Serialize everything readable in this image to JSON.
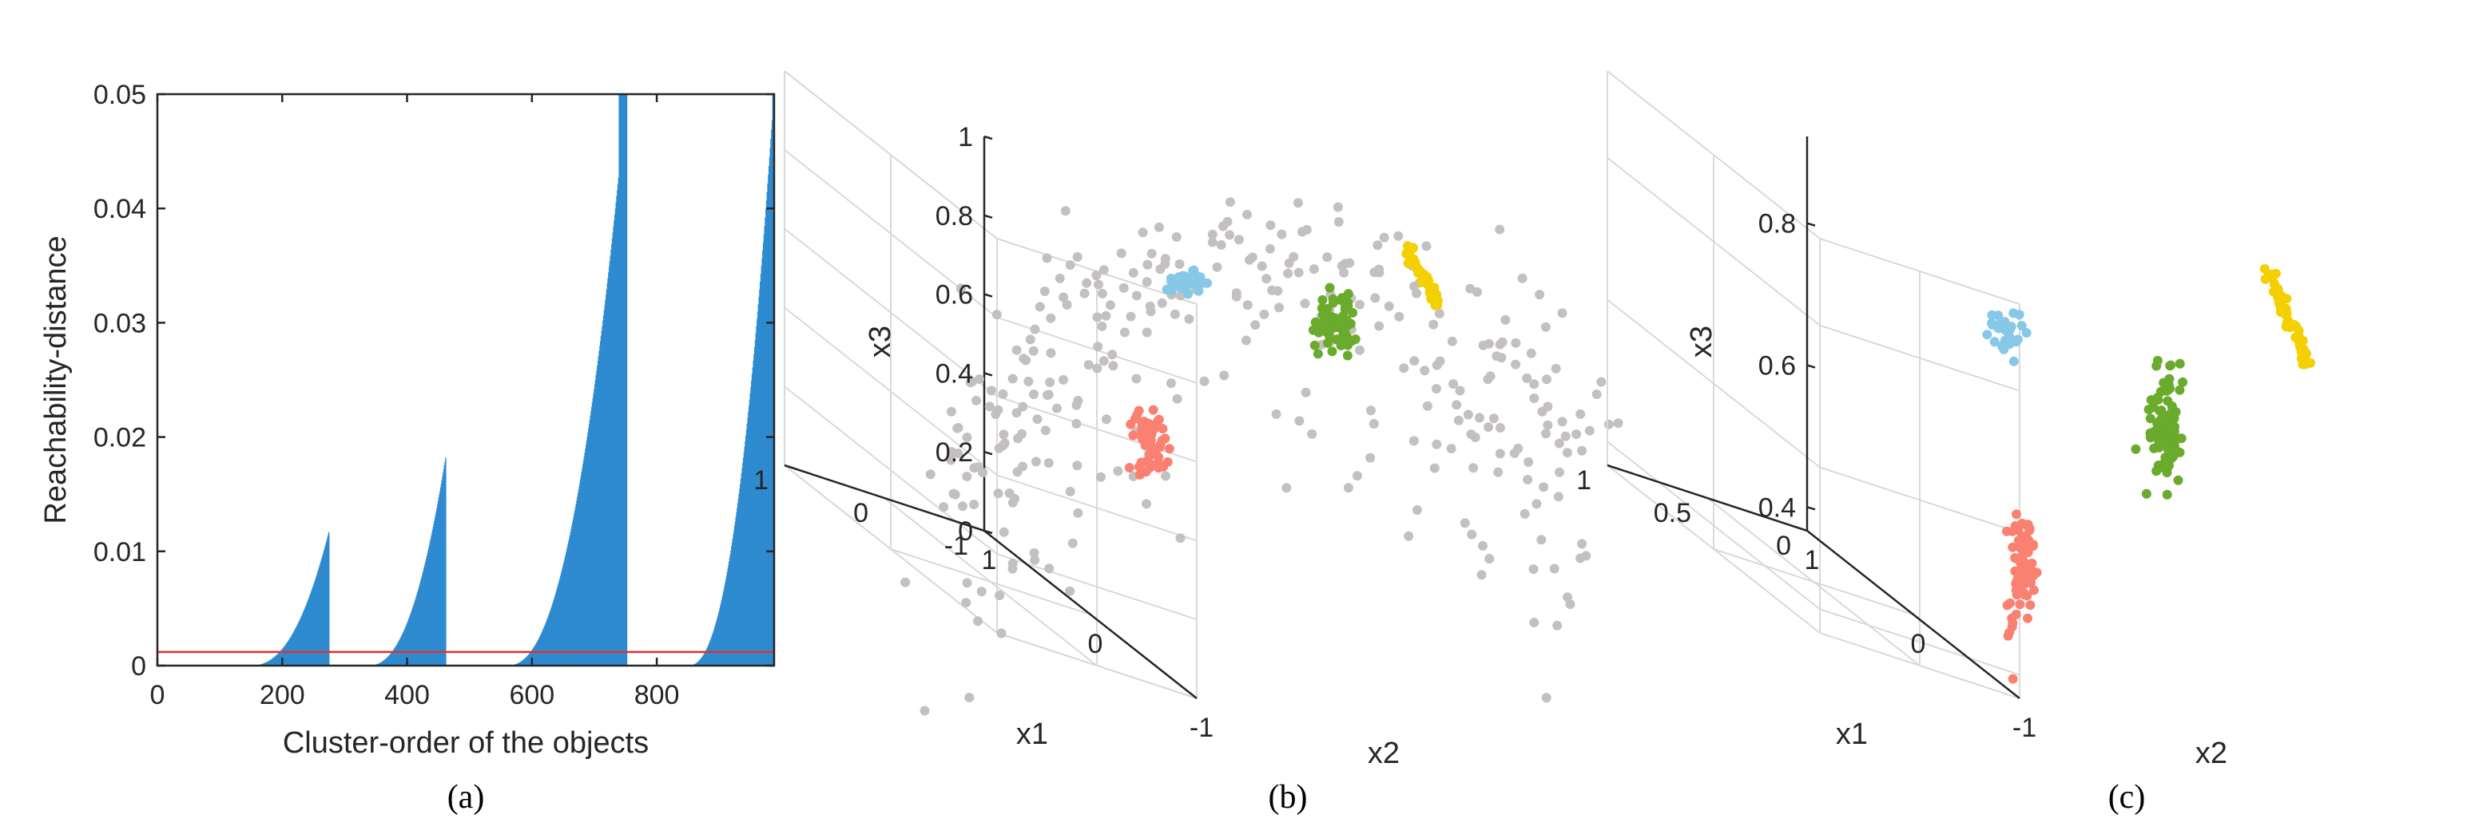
{
  "chart_data": [
    {
      "type": "bar",
      "panel_label": "(a)",
      "xlabel": "Cluster-order of the objects",
      "ylabel": "Reachability-distance",
      "xlim": [
        0,
        988
      ],
      "ylim": [
        0,
        0.05
      ],
      "xticks": [
        "0",
        "200",
        "400",
        "600",
        "800"
      ],
      "xtick_values": [
        0,
        200,
        400,
        600,
        800
      ],
      "yticks": [
        "0",
        "0.01",
        "0.02",
        "0.03",
        "0.04",
        "0.05"
      ],
      "ytick_values": [
        0,
        0.01,
        0.02,
        0.03,
        0.04,
        0.05
      ],
      "bar_color": "#2e8bd0",
      "threshold": {
        "value": 0.0012,
        "color": "#e03030"
      },
      "valleys": [
        {
          "x_start": 0,
          "x_end": 275,
          "rise_start": 150,
          "peak": 0.0115
        },
        {
          "x_start": 275,
          "x_end": 462,
          "rise_start": 338,
          "peak": 0.018
        },
        {
          "x_start": 462,
          "x_end": 752,
          "rise_start": 560,
          "peak": 0.05
        },
        {
          "x_start": 752,
          "x_end": 988,
          "rise_start": 850,
          "peak": 0.05
        }
      ]
    },
    {
      "type": "scatter",
      "panel_label": "(b)",
      "xlabel": "x1",
      "ylabel": "x2",
      "zlabel": "x3",
      "x1lim": [
        -1,
        1
      ],
      "x2lim": [
        -1,
        1
      ],
      "x3lim": [
        0,
        1
      ],
      "x1ticks": [
        "-1",
        "0",
        "1"
      ],
      "x2ticks": [
        "1",
        "0",
        "-1"
      ],
      "x3ticks": [
        "0",
        "0.2",
        "0.4",
        "0.6",
        "0.8",
        "1"
      ],
      "x3tick_values": [
        0,
        0.2,
        0.4,
        0.6,
        0.8,
        1.0
      ],
      "series": [
        {
          "color": "#c4c0c0",
          "count": 330,
          "center": [
            0,
            0,
            0.5
          ],
          "role": "noise shell"
        },
        {
          "color": "#fa8072",
          "count": 60,
          "center": [
            0.75,
            0.45,
            0.22
          ]
        },
        {
          "color": "#87c7e8",
          "count": 35,
          "center": [
            0.25,
            0.7,
            0.6
          ]
        },
        {
          "color": "#6aaa2c",
          "count": 60,
          "center": [
            -0.3,
            0.2,
            0.5
          ]
        },
        {
          "color": "#f5d000",
          "count": 45,
          "center": [
            -0.6,
            -0.6,
            0.6
          ]
        }
      ]
    },
    {
      "type": "scatter",
      "panel_label": "(c)",
      "xlabel": "x1",
      "ylabel": "x2",
      "zlabel": "x3",
      "x1lim": [
        0,
        1
      ],
      "x2lim": [
        -1,
        1
      ],
      "x3lim": [
        0.3,
        0.85
      ],
      "x1ticks": [
        "0",
        "0.5",
        "1"
      ],
      "x2ticks": [
        "1",
        "0",
        "-1"
      ],
      "x3ticks": [
        "0.4",
        "0.6",
        "0.8"
      ],
      "x3tick_values": [
        0.4,
        0.6,
        0.8
      ],
      "series": [
        {
          "color": "#fa8072",
          "count": 80,
          "center": [
            0.75,
            0.45,
            0.42
          ]
        },
        {
          "color": "#87c7e8",
          "count": 30,
          "center": [
            0.25,
            0.7,
            0.62
          ]
        },
        {
          "color": "#6aaa2c",
          "count": 90,
          "center": [
            -0.3,
            0.2,
            0.5
          ]
        },
        {
          "color": "#f5d000",
          "count": 60,
          "center": [
            -0.6,
            -0.6,
            0.6
          ]
        }
      ]
    }
  ]
}
